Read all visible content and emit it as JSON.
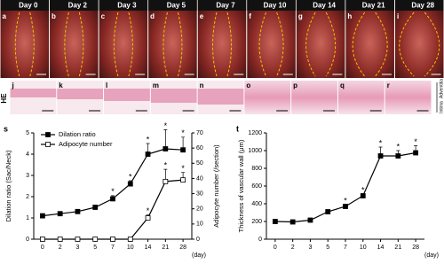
{
  "photos": {
    "panels": [
      {
        "letter": "a",
        "day": "Day 0"
      },
      {
        "letter": "b",
        "day": "Day 2"
      },
      {
        "letter": "c",
        "day": "Day 3"
      },
      {
        "letter": "d",
        "day": "Day 5"
      },
      {
        "letter": "e",
        "day": "Day 7"
      },
      {
        "letter": "f",
        "day": "Day 10"
      },
      {
        "letter": "g",
        "day": "Day 14"
      },
      {
        "letter": "h",
        "day": "Day 21"
      },
      {
        "letter": "i",
        "day": "Day 28"
      }
    ]
  },
  "histology": {
    "label": "HE",
    "panels": [
      "j",
      "k",
      "l",
      "m",
      "n",
      "o",
      "p",
      "q",
      "r"
    ],
    "orientation": [
      "Adventitia",
      "Intima"
    ]
  },
  "chart_data": [
    {
      "type": "line",
      "panel": "s",
      "categories": [
        "0",
        "2",
        "3",
        "5",
        "7",
        "10",
        "14",
        "21",
        "28"
      ],
      "xlabel": "(day)",
      "ylabel": "Dilation ratio (Sac/Neck)",
      "y2label": "Adipocyte number (/section)",
      "ylim": [
        0,
        5
      ],
      "yticks": [
        0,
        1,
        2,
        3,
        4,
        5
      ],
      "y2lim": [
        0,
        70
      ],
      "y2ticks": [
        0,
        10,
        20,
        30,
        40,
        50,
        60,
        70
      ],
      "significance_mark": "*",
      "legend": "upper left",
      "series": [
        {
          "name": "Dilation ratio",
          "color": "#000000",
          "marker": "filled-square",
          "values": [
            1.1,
            1.2,
            1.3,
            1.5,
            1.9,
            2.6,
            4.0,
            4.25,
            4.2
          ],
          "errors": [
            0.05,
            0.05,
            0.1,
            0.1,
            0.15,
            0.15,
            0.5,
            0.9,
            0.6
          ],
          "significant": [
            false,
            false,
            false,
            false,
            true,
            true,
            true,
            true,
            true
          ]
        },
        {
          "name": "Adipocyte number",
          "color": "#000000",
          "marker": "open-square",
          "axis": "y2",
          "values": [
            0,
            0,
            0,
            0,
            0,
            0,
            14,
            38,
            39
          ],
          "errors": [
            0,
            0,
            0,
            0,
            0,
            0,
            2,
            8,
            5
          ],
          "significant": [
            false,
            false,
            false,
            false,
            false,
            false,
            true,
            true,
            true
          ]
        }
      ]
    },
    {
      "type": "line",
      "panel": "t",
      "categories": [
        "0",
        "2",
        "3",
        "5",
        "7",
        "10",
        "14",
        "21",
        "28"
      ],
      "xlabel": "(day)",
      "ylabel": "Thickness of vascular wall (μm)",
      "ylim": [
        0,
        1200
      ],
      "yticks": [
        0,
        200,
        400,
        600,
        800,
        1000,
        1200
      ],
      "significance_mark": "*",
      "series": [
        {
          "color": "#000000",
          "marker": "filled-square",
          "values": [
            200,
            195,
            215,
            310,
            370,
            490,
            940,
            940,
            975
          ],
          "errors": [
            10,
            10,
            10,
            20,
            20,
            20,
            100,
            60,
            80
          ],
          "significant": [
            false,
            false,
            false,
            false,
            true,
            true,
            true,
            true,
            true
          ]
        }
      ]
    }
  ]
}
